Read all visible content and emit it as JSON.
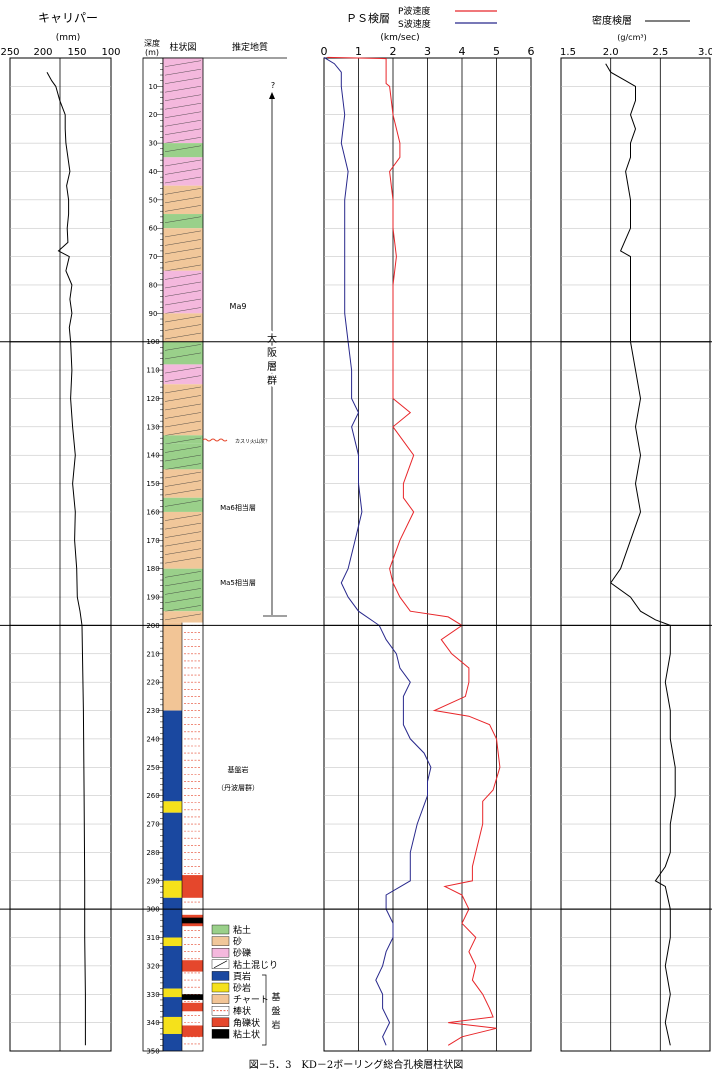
{
  "caliper": {
    "title": "キャリパー",
    "unit": "(mm)",
    "ticks": [
      "250",
      "200",
      "150",
      "100"
    ],
    "profile": [
      [
        5,
        195
      ],
      [
        8,
        188
      ],
      [
        10,
        182
      ],
      [
        15,
        176
      ],
      [
        20,
        168
      ],
      [
        25,
        168
      ],
      [
        30,
        167
      ],
      [
        35,
        164
      ],
      [
        40,
        161
      ],
      [
        45,
        166
      ],
      [
        50,
        163
      ],
      [
        55,
        163
      ],
      [
        60,
        165
      ],
      [
        65,
        164
      ],
      [
        68,
        178
      ],
      [
        70,
        162
      ],
      [
        75,
        167
      ],
      [
        80,
        158
      ],
      [
        85,
        161
      ],
      [
        90,
        158
      ],
      [
        95,
        162
      ],
      [
        100,
        160
      ],
      [
        110,
        158
      ],
      [
        120,
        160
      ],
      [
        130,
        157
      ],
      [
        140,
        153
      ],
      [
        150,
        157
      ],
      [
        160,
        153
      ],
      [
        170,
        154
      ],
      [
        180,
        151
      ],
      [
        190,
        150
      ],
      [
        195,
        146
      ],
      [
        200,
        143
      ],
      [
        230,
        141
      ],
      [
        260,
        140
      ],
      [
        290,
        139
      ],
      [
        310,
        139
      ],
      [
        330,
        138
      ],
      [
        348,
        138
      ]
    ]
  },
  "ps": {
    "title": "ＰＳ検層",
    "legend_p": "P波速度",
    "legend_s": "S波速度",
    "unit": "(km/sec)",
    "ticks": [
      "0",
      "1",
      "2",
      "3",
      "4",
      "5",
      "6"
    ],
    "p_wave": [
      [
        -0.2,
        0.1
      ],
      [
        0.2,
        1.8
      ],
      [
        9,
        1.8
      ],
      [
        10,
        1.9
      ],
      [
        20,
        2.0
      ],
      [
        30,
        2.2
      ],
      [
        35,
        2.2
      ],
      [
        40,
        1.9
      ],
      [
        50,
        2.0
      ],
      [
        60,
        2.0
      ],
      [
        70,
        2.1
      ],
      [
        80,
        2.0
      ],
      [
        90,
        2.0
      ],
      [
        100,
        2.0
      ],
      [
        110,
        2.0
      ],
      [
        120,
        2.0
      ],
      [
        125,
        2.5
      ],
      [
        130,
        2.0
      ],
      [
        140,
        2.6
      ],
      [
        150,
        2.3
      ],
      [
        155,
        2.3
      ],
      [
        160,
        2.6
      ],
      [
        170,
        2.2
      ],
      [
        180,
        1.9
      ],
      [
        185,
        2.0
      ],
      [
        190,
        2.2
      ],
      [
        195,
        2.5
      ],
      [
        197,
        3.6
      ],
      [
        200,
        4.0
      ],
      [
        205,
        3.4
      ],
      [
        210,
        3.7
      ],
      [
        215,
        4.2
      ],
      [
        220,
        4.2
      ],
      [
        225,
        4.1
      ],
      [
        230,
        3.2
      ],
      [
        232,
        4.2
      ],
      [
        235,
        4.8
      ],
      [
        240,
        5.0
      ],
      [
        250,
        5.1
      ],
      [
        258,
        4.9
      ],
      [
        262,
        4.6
      ],
      [
        270,
        4.6
      ],
      [
        280,
        4.4
      ],
      [
        285,
        4.3
      ],
      [
        290,
        4.3
      ],
      [
        292,
        3.5
      ],
      [
        295,
        4.0
      ],
      [
        300,
        4.2
      ],
      [
        305,
        4.0
      ],
      [
        310,
        4.4
      ],
      [
        315,
        4.2
      ],
      [
        320,
        4.4
      ],
      [
        325,
        4.3
      ],
      [
        330,
        4.6
      ],
      [
        335,
        4.8
      ],
      [
        338,
        4.9
      ],
      [
        340,
        3.6
      ],
      [
        342,
        5.0
      ],
      [
        345,
        4.0
      ],
      [
        348,
        3.6
      ]
    ],
    "s_wave": [
      [
        -0.2,
        0.0
      ],
      [
        2,
        0.3
      ],
      [
        5,
        0.5
      ],
      [
        10,
        0.5
      ],
      [
        20,
        0.6
      ],
      [
        30,
        0.5
      ],
      [
        40,
        0.7
      ],
      [
        50,
        0.6
      ],
      [
        60,
        0.6
      ],
      [
        70,
        0.6
      ],
      [
        80,
        0.6
      ],
      [
        90,
        0.6
      ],
      [
        100,
        0.7
      ],
      [
        110,
        0.8
      ],
      [
        120,
        0.8
      ],
      [
        125,
        1.0
      ],
      [
        130,
        0.8
      ],
      [
        140,
        1.0
      ],
      [
        150,
        1.0
      ],
      [
        160,
        1.1
      ],
      [
        170,
        0.9
      ],
      [
        180,
        0.7
      ],
      [
        185,
        0.5
      ],
      [
        190,
        0.7
      ],
      [
        195,
        1.0
      ],
      [
        200,
        1.6
      ],
      [
        205,
        1.8
      ],
      [
        210,
        2.1
      ],
      [
        215,
        2.2
      ],
      [
        220,
        2.5
      ],
      [
        225,
        2.3
      ],
      [
        230,
        2.3
      ],
      [
        235,
        2.3
      ],
      [
        240,
        2.5
      ],
      [
        245,
        2.9
      ],
      [
        250,
        3.1
      ],
      [
        255,
        3.0
      ],
      [
        260,
        3.0
      ],
      [
        270,
        2.7
      ],
      [
        280,
        2.5
      ],
      [
        290,
        2.5
      ],
      [
        295,
        1.8
      ],
      [
        300,
        1.8
      ],
      [
        305,
        2.0
      ],
      [
        310,
        2.0
      ],
      [
        315,
        1.8
      ],
      [
        320,
        1.7
      ],
      [
        325,
        1.5
      ],
      [
        330,
        1.7
      ],
      [
        335,
        1.7
      ],
      [
        340,
        1.9
      ],
      [
        345,
        1.7
      ],
      [
        348,
        1.8
      ]
    ]
  },
  "density": {
    "title": "密度検層",
    "unit": "(g/cm³)",
    "ticks": [
      "1.5",
      "2.0",
      "2.5",
      "3.0"
    ],
    "profile": [
      [
        2,
        1.95
      ],
      [
        5,
        2.0
      ],
      [
        8,
        2.15
      ],
      [
        10,
        2.25
      ],
      [
        15,
        2.25
      ],
      [
        20,
        2.2
      ],
      [
        25,
        2.25
      ],
      [
        30,
        2.2
      ],
      [
        35,
        2.2
      ],
      [
        40,
        2.15
      ],
      [
        50,
        2.2
      ],
      [
        60,
        2.2
      ],
      [
        68,
        2.1
      ],
      [
        70,
        2.2
      ],
      [
        80,
        2.2
      ],
      [
        90,
        2.2
      ],
      [
        100,
        2.2
      ],
      [
        110,
        2.25
      ],
      [
        120,
        2.3
      ],
      [
        130,
        2.25
      ],
      [
        140,
        2.3
      ],
      [
        150,
        2.25
      ],
      [
        160,
        2.3
      ],
      [
        170,
        2.2
      ],
      [
        180,
        2.1
      ],
      [
        185,
        2.0
      ],
      [
        190,
        2.2
      ],
      [
        195,
        2.3
      ],
      [
        198,
        2.45
      ],
      [
        200,
        2.6
      ],
      [
        210,
        2.6
      ],
      [
        220,
        2.55
      ],
      [
        230,
        2.6
      ],
      [
        240,
        2.6
      ],
      [
        250,
        2.65
      ],
      [
        260,
        2.65
      ],
      [
        270,
        2.6
      ],
      [
        280,
        2.6
      ],
      [
        285,
        2.55
      ],
      [
        290,
        2.45
      ],
      [
        292,
        2.55
      ],
      [
        300,
        2.6
      ],
      [
        310,
        2.6
      ],
      [
        320,
        2.55
      ],
      [
        330,
        2.6
      ],
      [
        340,
        2.55
      ],
      [
        348,
        2.6
      ]
    ]
  },
  "column": {
    "depth_header_1": "深度",
    "depth_header_2": "(m)",
    "log_header": "柱状図",
    "geology_header": "推定地質",
    "depth_ticks": [
      "10",
      "20",
      "30",
      "40",
      "50",
      "60",
      "70",
      "80",
      "90",
      "100",
      "110",
      "120",
      "130",
      "140",
      "150",
      "160",
      "170",
      "180",
      "190",
      "200",
      "210",
      "220",
      "230",
      "240",
      "250",
      "260",
      "270",
      "280",
      "290",
      "300",
      "310",
      "320",
      "330",
      "340",
      "350"
    ]
  },
  "geology": {
    "question": "?",
    "group_label": "大阪層群",
    "ma9": "Ma9",
    "kasuri": "カスリ火山灰？",
    "ma6": "Ma6相当層",
    "ma5": "Ma5相当層",
    "basement_1": "基盤岩",
    "basement_2": "（丹波層群）"
  },
  "legend": {
    "items": [
      "粘土",
      "砂",
      "砂礫",
      "粘土混じり",
      "頁岩",
      "砂岩",
      "チャート",
      "棒状",
      "角礫状",
      "粘土状"
    ],
    "basement_label": "基盤岩"
  },
  "caption": "図－5．3　KD－2ボーリング総合孔検層柱状図",
  "colors": {
    "p_wave": "#e8262a",
    "s_wave": "#28288c",
    "clay": "#9ad08a",
    "sand": "#f1c79a",
    "gravel": "#f4b8dd",
    "shale": "#1a48a0",
    "sandstone": "#f5e11b",
    "chert": "#f2c596",
    "fracture_red": "#e5472c"
  }
}
